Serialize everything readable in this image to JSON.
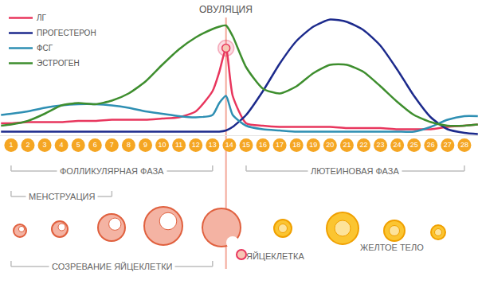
{
  "chart_data": {
    "type": "line",
    "legend": "top-left",
    "grid": false,
    "tick_labels": "x",
    "xlim": [
      0.34,
      28.81
    ],
    "xticks": [
      1,
      2,
      3,
      4,
      5,
      6,
      7,
      8,
      9,
      10,
      11,
      12,
      13,
      14,
      15,
      16,
      17,
      18,
      19,
      20,
      21,
      22,
      23,
      24,
      25,
      26,
      27,
      28
    ],
    "ylim": [
      0,
      100
    ],
    "yticks": [],
    "x": [
      0.4,
      1,
      2,
      3,
      4,
      5,
      6,
      7,
      8,
      9,
      10,
      11,
      12,
      13,
      13.4,
      13.8,
      14.2,
      15,
      16,
      17,
      18,
      19,
      20,
      21,
      22,
      23,
      24,
      25,
      26,
      27,
      28,
      28.8
    ],
    "series": [
      {
        "name": "ЛГ",
        "color": "#e8365d",
        "values": [
          10,
          10,
          11,
          11,
          11,
          12,
          12,
          13,
          13,
          13,
          14,
          15,
          20,
          37,
          53,
          73,
          33,
          10,
          8,
          7,
          7,
          7,
          7,
          6,
          6,
          6,
          5,
          5,
          5,
          7,
          8,
          9
        ]
      },
      {
        "name": "ПРОГЕСТЕРОН",
        "color": "#1c2a8c",
        "values": [
          3,
          3,
          3,
          3,
          3,
          3,
          3,
          3,
          3,
          3,
          3,
          3,
          3,
          3,
          3,
          4,
          7,
          17,
          37,
          60,
          79,
          91,
          97,
          95,
          88,
          75,
          55,
          33,
          15,
          5,
          2,
          1
        ]
      },
      {
        "name": "ФСГ",
        "color": "#2e8fb3",
        "values": [
          17,
          18,
          20,
          23,
          25,
          26,
          26,
          25,
          23,
          20,
          18,
          16,
          15,
          17,
          27,
          33,
          17,
          8,
          5,
          4,
          3,
          3,
          3,
          3,
          3,
          3,
          3,
          3,
          7,
          13,
          16,
          16
        ]
      },
      {
        "name": "ЭСТРОГЕН",
        "color": "#3e8e2e",
        "values": [
          8,
          9,
          12,
          18,
          25,
          27,
          26,
          29,
          35,
          45,
          59,
          72,
          82,
          89,
          91,
          92,
          83,
          57,
          39,
          35,
          41,
          52,
          59,
          59,
          53,
          41,
          28,
          17,
          11,
          8,
          8,
          9
        ]
      }
    ],
    "ovulation": {
      "text": "ОВУЛЯЦИЯ",
      "x": 13.8
    },
    "phases": [
      {
        "text": "ФОЛЛИКУЛЯРНАЯ ФАЗА",
        "from": 1,
        "to": 13
      },
      {
        "text": "ЛЮТЕИНОВАЯ ФАЗА",
        "from": 15,
        "to": 28
      },
      {
        "text": "МЕНСТРУАЦИЯ",
        "from": 1,
        "to": 7
      },
      {
        "text": "СОЗРЕВАНИЕ ЯЙЦЕКЛЕТКИ",
        "from": 1,
        "to": 13
      }
    ],
    "labels": [
      "ЯЙЦЕКЛЕТКА",
      "ЖЕЛТОЕ ТЕЛО"
    ]
  }
}
